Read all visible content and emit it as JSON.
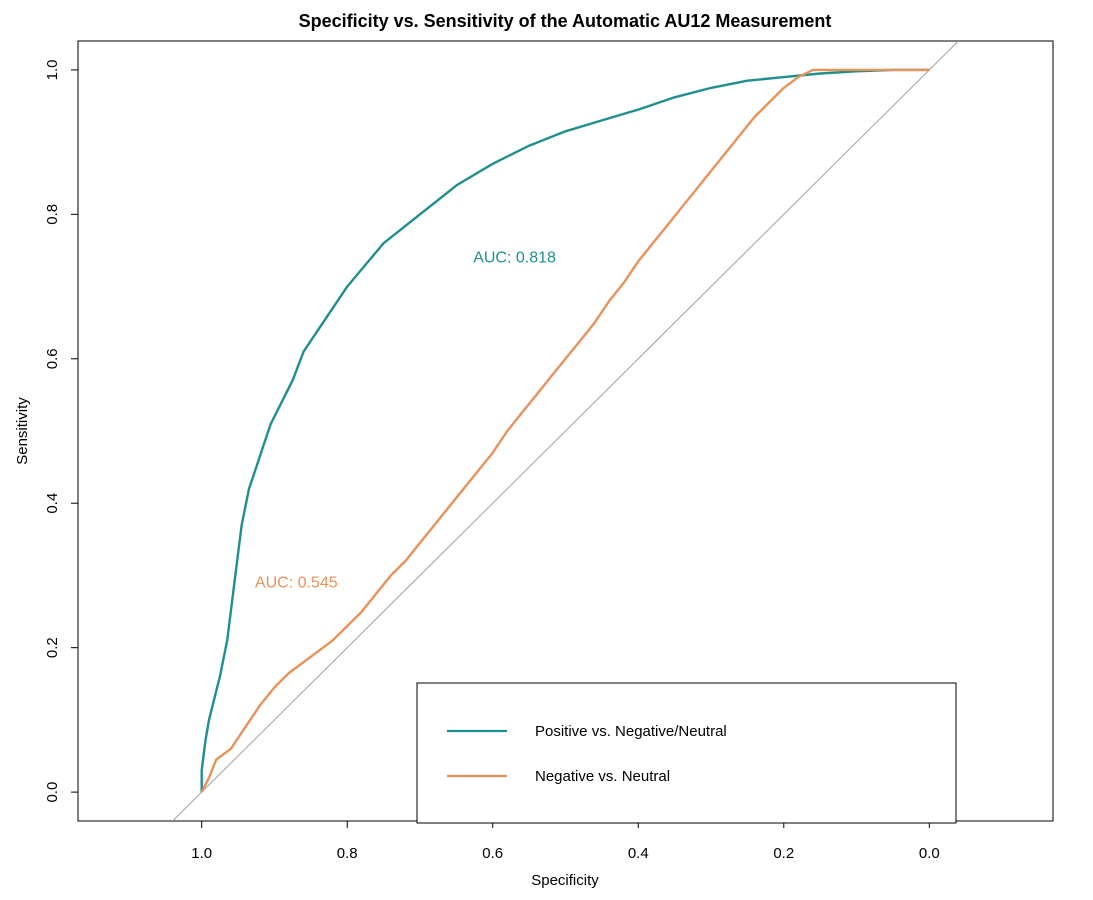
{
  "chart_data": {
    "type": "line",
    "title": "Specificity vs. Sensitivity of the Automatic AU12 Measurement",
    "xlabel": "Specificity",
    "ylabel": "Sensitivity",
    "x_reversed": true,
    "xlim": [
      1.17,
      -0.17
    ],
    "ylim": [
      -0.04,
      1.04
    ],
    "x_ticks": [
      1.0,
      0.8,
      0.6,
      0.4,
      0.2,
      0.0
    ],
    "x_tick_labels": [
      "1.0",
      "0.8",
      "0.6",
      "0.4",
      "0.2",
      "0.0"
    ],
    "y_ticks": [
      0.0,
      0.2,
      0.4,
      0.6,
      0.8,
      1.0
    ],
    "y_tick_labels": [
      "0.0",
      "0.2",
      "0.4",
      "0.6",
      "0.8",
      "1.0"
    ],
    "grid": false,
    "reference_line": "diagonal",
    "legend_position": "bottom-right",
    "series": [
      {
        "name": "Positive vs. Negative/Neutral",
        "color": "#1f8f8f",
        "auc_label": "AUC: 0.818",
        "auc_label_at": [
          0.57,
          0.74
        ],
        "x": [
          1.0,
          1.0,
          0.995,
          0.99,
          0.985,
          0.975,
          0.965,
          0.955,
          0.945,
          0.935,
          0.925,
          0.915,
          0.905,
          0.89,
          0.875,
          0.86,
          0.84,
          0.82,
          0.8,
          0.775,
          0.75,
          0.725,
          0.7,
          0.675,
          0.65,
          0.6,
          0.55,
          0.5,
          0.45,
          0.4,
          0.35,
          0.3,
          0.25,
          0.2,
          0.15,
          0.1,
          0.05,
          0.0
        ],
        "y": [
          0.0,
          0.03,
          0.07,
          0.1,
          0.12,
          0.16,
          0.21,
          0.29,
          0.37,
          0.42,
          0.45,
          0.48,
          0.51,
          0.54,
          0.57,
          0.61,
          0.64,
          0.67,
          0.7,
          0.73,
          0.76,
          0.78,
          0.8,
          0.82,
          0.84,
          0.87,
          0.895,
          0.915,
          0.93,
          0.945,
          0.962,
          0.975,
          0.985,
          0.99,
          0.995,
          0.998,
          1.0,
          1.0
        ]
      },
      {
        "name": "Negative vs. Neutral",
        "color": "#e8925a",
        "auc_label": "AUC: 0.545",
        "auc_label_at": [
          0.87,
          0.29
        ],
        "x": [
          1.0,
          0.99,
          0.98,
          0.96,
          0.94,
          0.92,
          0.9,
          0.88,
          0.86,
          0.84,
          0.82,
          0.8,
          0.78,
          0.76,
          0.74,
          0.72,
          0.7,
          0.68,
          0.66,
          0.64,
          0.62,
          0.6,
          0.58,
          0.56,
          0.54,
          0.52,
          0.5,
          0.48,
          0.46,
          0.44,
          0.42,
          0.4,
          0.38,
          0.36,
          0.34,
          0.32,
          0.3,
          0.28,
          0.26,
          0.24,
          0.22,
          0.2,
          0.18,
          0.16,
          0.14,
          0.12,
          0.1,
          0.08,
          0.06,
          0.04,
          0.02,
          0.0
        ],
        "y": [
          0.0,
          0.02,
          0.045,
          0.06,
          0.09,
          0.12,
          0.145,
          0.165,
          0.18,
          0.195,
          0.21,
          0.23,
          0.25,
          0.275,
          0.3,
          0.32,
          0.345,
          0.37,
          0.395,
          0.42,
          0.445,
          0.47,
          0.5,
          0.525,
          0.55,
          0.575,
          0.6,
          0.625,
          0.65,
          0.68,
          0.705,
          0.735,
          0.76,
          0.785,
          0.81,
          0.835,
          0.86,
          0.885,
          0.91,
          0.935,
          0.955,
          0.975,
          0.99,
          1.0,
          1.0,
          1.0,
          1.0,
          1.0,
          1.0,
          1.0,
          1.0,
          1.0
        ]
      }
    ]
  }
}
